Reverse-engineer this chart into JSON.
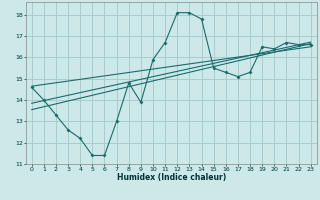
{
  "xlabel": "Humidex (Indice chaleur)",
  "ylabel": "",
  "bg_color": "#cce8e8",
  "grid_color": "#aacccc",
  "line_color": "#1a6b6b",
  "xlim": [
    -0.5,
    23.5
  ],
  "ylim": [
    11,
    18.6
  ],
  "yticks": [
    11,
    12,
    13,
    14,
    15,
    16,
    17,
    18
  ],
  "xticks": [
    0,
    1,
    2,
    3,
    4,
    5,
    6,
    7,
    8,
    9,
    10,
    11,
    12,
    13,
    14,
    15,
    16,
    17,
    18,
    19,
    20,
    21,
    22,
    23
  ],
  "curve_x": [
    0,
    1,
    2,
    3,
    4,
    5,
    6,
    7,
    8,
    9,
    10,
    11,
    12,
    13,
    14,
    15,
    16,
    17,
    18,
    19,
    20,
    21,
    22,
    23
  ],
  "curve_y": [
    14.6,
    14.0,
    13.3,
    12.6,
    12.2,
    11.4,
    11.4,
    13.0,
    14.8,
    13.9,
    15.9,
    16.7,
    18.1,
    18.1,
    17.8,
    15.5,
    15.3,
    15.1,
    15.3,
    16.5,
    16.4,
    16.7,
    16.6,
    16.6
  ],
  "trend1_x": [
    0,
    23
  ],
  "trend1_y": [
    13.55,
    16.65
  ],
  "trend2_x": [
    0,
    23
  ],
  "trend2_y": [
    13.85,
    16.72
  ],
  "trend3_x": [
    0,
    23
  ],
  "trend3_y": [
    14.65,
    16.5
  ]
}
